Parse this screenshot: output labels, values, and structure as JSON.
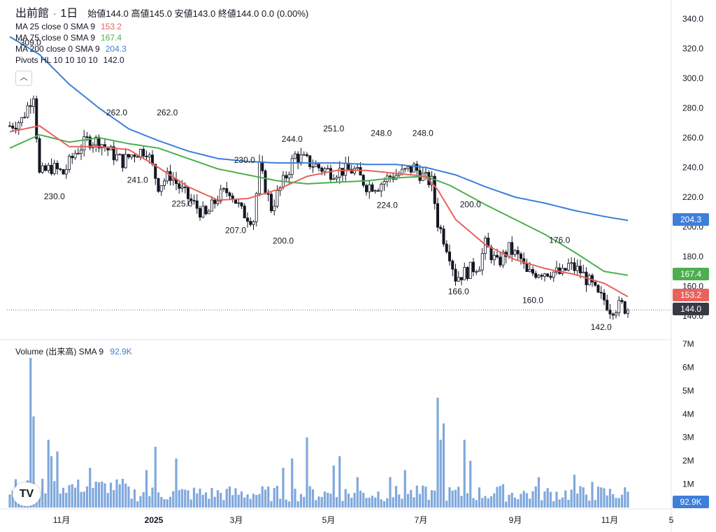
{
  "header": {
    "symbol": "出前館",
    "interval": "1日",
    "open_label": "始値",
    "open": "144.0",
    "high_label": "高値",
    "high": "145.0",
    "low_label": "安値",
    "low": "143.0",
    "close_label": "終値",
    "close": "144.0",
    "change": "0.0 (0.00%)"
  },
  "indicators": [
    {
      "name": "MA 25 close 0 SMA 9",
      "value": "153.2",
      "color": "#e8625e"
    },
    {
      "name": "MA 75 close 0 SMA 9",
      "value": "167.4",
      "color": "#4caf50"
    },
    {
      "name": "MA 200 close 0 SMA 9",
      "value": "204.3",
      "color": "#3d7fd9"
    },
    {
      "name": "Pivots HL 10 10 10 10",
      "value": "142.0",
      "color": "#131722"
    }
  ],
  "collapse_icon": "chevron-up-icon",
  "volume_legend": {
    "name": "Volume (出来高) SMA 9",
    "value": "92.9K",
    "color": "#3d7fd9"
  },
  "price_tags": [
    {
      "value": "204.3",
      "color": "#3d7fd9"
    },
    {
      "value": "167.4",
      "color": "#4caf50"
    },
    {
      "value": "153.2",
      "color": "#e8625e"
    },
    {
      "value": "144.0",
      "color": "#363a45"
    },
    {
      "value": "92.9K",
      "color": "#3d7fd9"
    }
  ],
  "logo_text": "TV",
  "chart_data": {
    "type": "candlestick",
    "price_axis": {
      "ticks": [
        "340.0",
        "320.0",
        "300.0",
        "280.0",
        "260.0",
        "240.0",
        "220.0",
        "200.0",
        "180.0",
        "160.0",
        "140.0"
      ],
      "range": [
        132,
        346
      ]
    },
    "volume_axis": {
      "ticks": [
        "7M",
        "6M",
        "5M",
        "4M",
        "3M",
        "2M",
        "1M"
      ],
      "range": [
        0,
        7300000
      ]
    },
    "time_axis": {
      "ticks": [
        "11月",
        "2025",
        "3月",
        "5月",
        "7月",
        "9月",
        "11月",
        "5"
      ]
    },
    "last_price": 144.0,
    "price_path": [
      [
        0,
        268
      ],
      [
        4,
        272
      ],
      [
        8,
        290
      ],
      [
        10,
        235
      ],
      [
        14,
        240
      ],
      [
        18,
        236
      ],
      [
        22,
        250
      ],
      [
        26,
        258
      ],
      [
        30,
        258
      ],
      [
        34,
        250
      ],
      [
        38,
        244
      ],
      [
        42,
        250
      ],
      [
        46,
        252
      ],
      [
        50,
        228
      ],
      [
        54,
        235
      ],
      [
        58,
        224
      ],
      [
        62,
        215
      ],
      [
        66,
        207
      ],
      [
        70,
        220
      ],
      [
        74,
        225
      ],
      [
        78,
        210
      ],
      [
        82,
        205
      ],
      [
        84,
        240
      ],
      [
        88,
        213
      ],
      [
        92,
        230
      ],
      [
        96,
        248
      ],
      [
        100,
        244
      ],
      [
        104,
        240
      ],
      [
        108,
        237
      ],
      [
        112,
        238
      ],
      [
        116,
        238
      ],
      [
        120,
        228
      ],
      [
        124,
        228
      ],
      [
        128,
        234
      ],
      [
        132,
        236
      ],
      [
        136,
        240
      ],
      [
        140,
        232
      ],
      [
        142,
        230
      ],
      [
        144,
        203
      ],
      [
        148,
        182
      ],
      [
        150,
        166
      ],
      [
        154,
        170
      ],
      [
        158,
        175
      ],
      [
        160,
        188
      ],
      [
        164,
        175
      ],
      [
        168,
        185
      ],
      [
        172,
        178
      ],
      [
        174,
        168
      ],
      [
        178,
        170
      ],
      [
        182,
        170
      ],
      [
        186,
        168
      ],
      [
        188,
        174
      ],
      [
        192,
        170
      ],
      [
        196,
        160
      ],
      [
        198,
        153
      ],
      [
        200,
        151
      ],
      [
        202,
        145
      ],
      [
        206,
        147
      ],
      [
        208,
        144
      ]
    ],
    "ma25": [
      [
        0,
        264
      ],
      [
        10,
        268
      ],
      [
        20,
        254
      ],
      [
        30,
        254
      ],
      [
        40,
        252
      ],
      [
        50,
        240
      ],
      [
        60,
        227
      ],
      [
        70,
        218
      ],
      [
        80,
        219
      ],
      [
        90,
        225
      ],
      [
        100,
        234
      ],
      [
        110,
        238
      ],
      [
        120,
        238
      ],
      [
        130,
        236
      ],
      [
        140,
        234
      ],
      [
        144,
        225
      ],
      [
        150,
        205
      ],
      [
        160,
        188
      ],
      [
        170,
        178
      ],
      [
        180,
        172
      ],
      [
        190,
        168
      ],
      [
        200,
        162
      ],
      [
        208,
        153
      ]
    ],
    "ma75": [
      [
        0,
        253
      ],
      [
        10,
        262
      ],
      [
        20,
        257
      ],
      [
        30,
        260
      ],
      [
        40,
        256
      ],
      [
        50,
        253
      ],
      [
        60,
        246
      ],
      [
        70,
        239
      ],
      [
        80,
        235
      ],
      [
        90,
        231
      ],
      [
        100,
        229
      ],
      [
        110,
        230
      ],
      [
        120,
        231
      ],
      [
        130,
        233
      ],
      [
        140,
        234
      ],
      [
        148,
        228
      ],
      [
        160,
        215
      ],
      [
        170,
        205
      ],
      [
        180,
        195
      ],
      [
        190,
        183
      ],
      [
        200,
        170
      ],
      [
        208,
        167.4
      ]
    ],
    "ma200": [
      [
        0,
        328
      ],
      [
        10,
        316
      ],
      [
        20,
        296
      ],
      [
        30,
        280
      ],
      [
        40,
        266
      ],
      [
        50,
        258
      ],
      [
        60,
        251
      ],
      [
        70,
        246
      ],
      [
        80,
        244
      ],
      [
        90,
        243
      ],
      [
        100,
        243
      ],
      [
        110,
        243
      ],
      [
        120,
        242
      ],
      [
        130,
        242
      ],
      [
        140,
        240
      ],
      [
        150,
        235
      ],
      [
        160,
        227
      ],
      [
        170,
        220
      ],
      [
        180,
        216
      ],
      [
        190,
        211
      ],
      [
        200,
        207
      ],
      [
        208,
        204.3
      ]
    ],
    "pivot_labels": [
      {
        "bar": 7,
        "price": 309.0,
        "label": "309.0",
        "pos": "above"
      },
      {
        "bar": 15,
        "price": 230.0,
        "label": "230.0",
        "pos": "below"
      },
      {
        "bar": 36,
        "price": 262.0,
        "label": "262.0",
        "pos": "above"
      },
      {
        "bar": 53,
        "price": 262.0,
        "label": "262.0",
        "pos": "above"
      },
      {
        "bar": 43,
        "price": 241.0,
        "label": "241.0",
        "pos": "below"
      },
      {
        "bar": 58,
        "price": 225.0,
        "label": "225.0",
        "pos": "below"
      },
      {
        "bar": 79,
        "price": 230.0,
        "label": "230.0",
        "pos": "above"
      },
      {
        "bar": 76,
        "price": 207.0,
        "label": "207.0",
        "pos": "below"
      },
      {
        "bar": 95,
        "price": 244.0,
        "label": "244.0",
        "pos": "above"
      },
      {
        "bar": 92,
        "price": 200.0,
        "label": "200.0",
        "pos": "below"
      },
      {
        "bar": 109,
        "price": 251.0,
        "label": "251.0",
        "pos": "above"
      },
      {
        "bar": 125,
        "price": 248.0,
        "label": "248.0",
        "pos": "above"
      },
      {
        "bar": 139,
        "price": 248.0,
        "label": "248.0",
        "pos": "above"
      },
      {
        "bar": 127,
        "price": 224.0,
        "label": "224.0",
        "pos": "below"
      },
      {
        "bar": 155,
        "price": 200.0,
        "label": "200.0",
        "pos": "above"
      },
      {
        "bar": 151,
        "price": 166.0,
        "label": "166.0",
        "pos": "below"
      },
      {
        "bar": 185,
        "price": 176.0,
        "label": "176.0",
        "pos": "above"
      },
      {
        "bar": 176,
        "price": 160.0,
        "label": "160.0",
        "pos": "below"
      },
      {
        "bar": 199,
        "price": 142.0,
        "label": "142.0",
        "pos": "below"
      }
    ],
    "volume_peaks": [
      [
        7,
        6.4
      ],
      [
        8,
        3.9
      ],
      [
        13,
        2.9
      ],
      [
        14,
        2.2
      ],
      [
        16,
        2.4
      ],
      [
        27,
        1.7
      ],
      [
        46,
        1.6
      ],
      [
        49,
        2.6
      ],
      [
        56,
        2.1
      ],
      [
        92,
        1.7
      ],
      [
        95,
        2.1
      ],
      [
        100,
        3.0
      ],
      [
        109,
        1.8
      ],
      [
        111,
        2.2
      ],
      [
        117,
        1.3
      ],
      [
        128,
        1.3
      ],
      [
        133,
        1.6
      ],
      [
        144,
        4.7
      ],
      [
        145,
        2.9
      ],
      [
        146,
        3.6
      ],
      [
        153,
        2.9
      ],
      [
        155,
        2.0
      ],
      [
        166,
        1.0
      ],
      [
        178,
        1.3
      ],
      [
        190,
        1.4
      ],
      [
        196,
        1.1
      ]
    ]
  }
}
